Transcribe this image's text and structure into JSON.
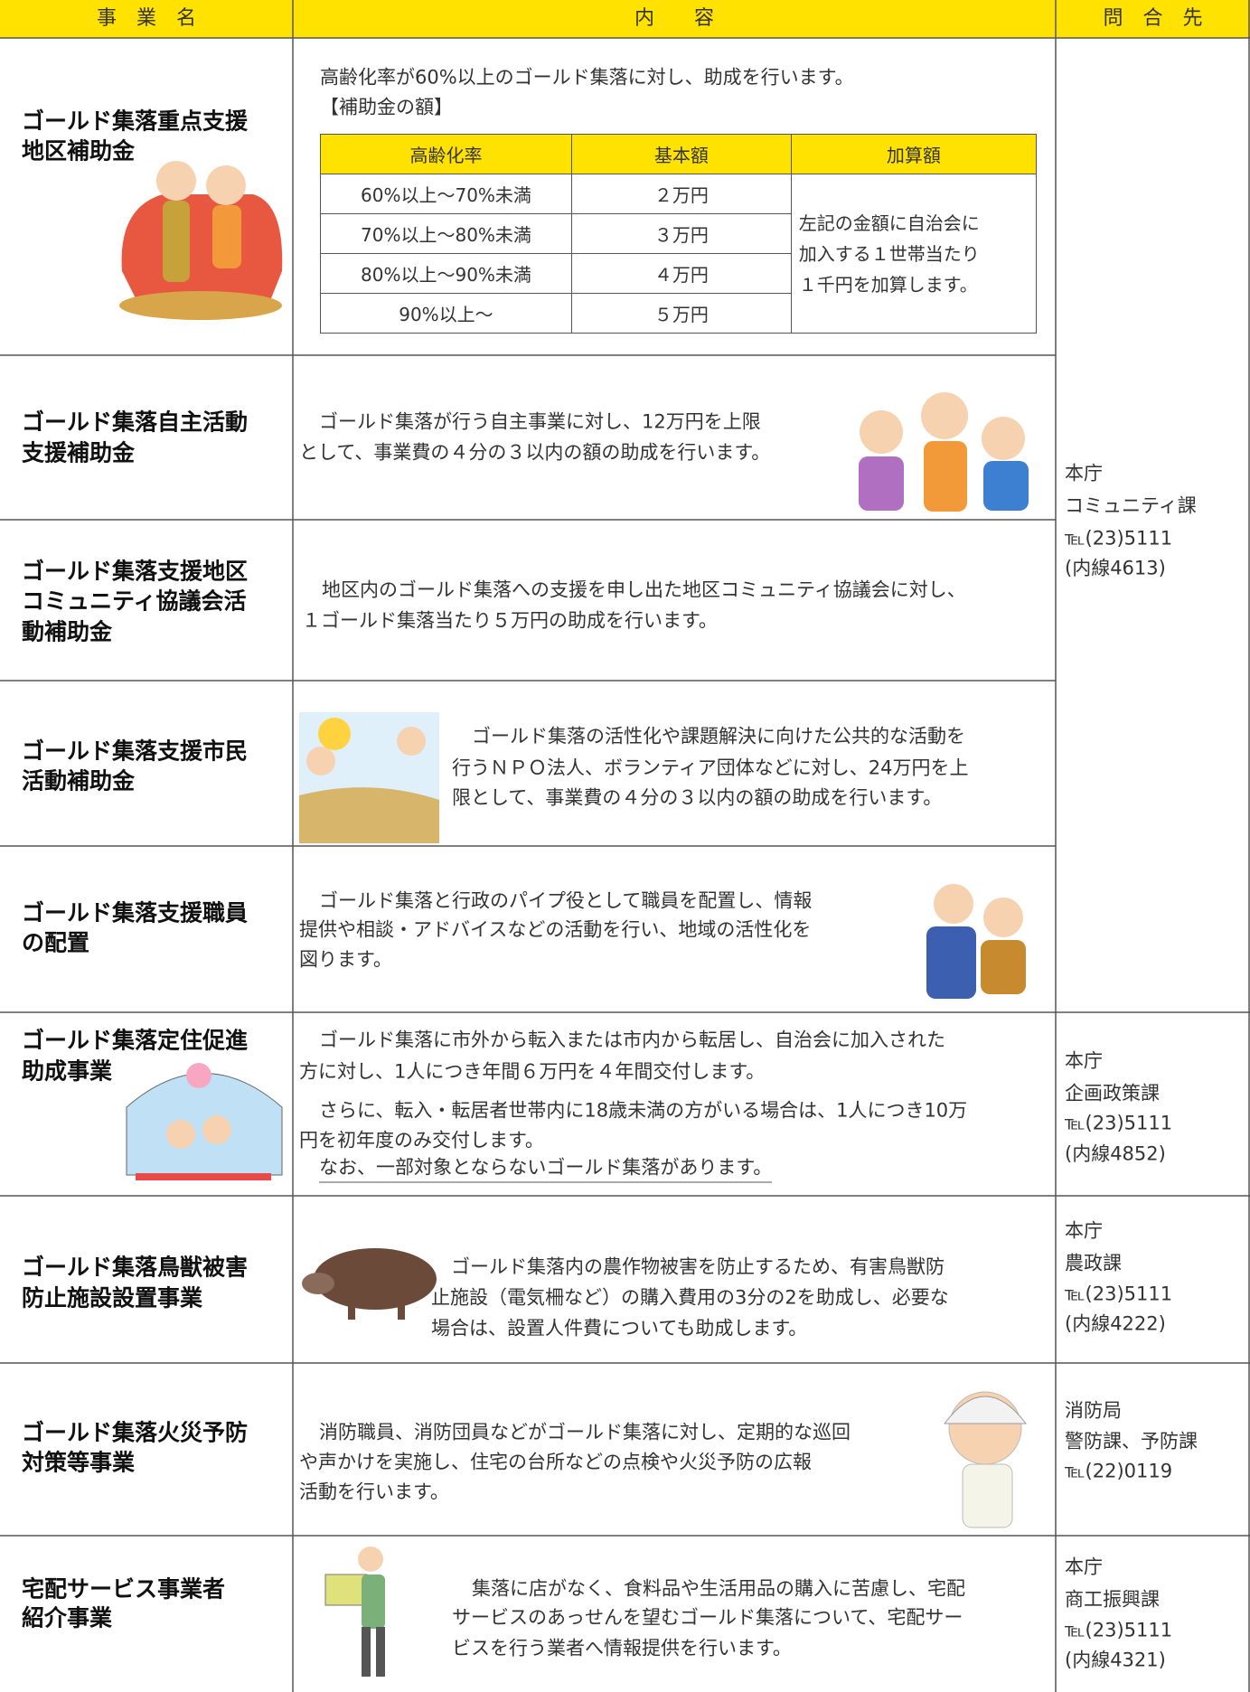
{
  "header": {
    "name": "事　業　名",
    "content": "内　　容",
    "contact": "問　合　先"
  },
  "rows": [
    {
      "name": [
        "ゴールド集落重点支援",
        "地区補助金"
      ],
      "content": [
        "高齢化率が60%以上のゴールド集落に対し、助成を行います。",
        "【補助金の額】"
      ],
      "table": {
        "header": [
          "高齢化率",
          "基本額",
          "加算額"
        ],
        "rows": [
          [
            "60%以上〜70%未満",
            "２万円"
          ],
          [
            "70%以上〜80%未満",
            "３万円"
          ],
          [
            "80%以上〜90%未満",
            "４万円"
          ],
          [
            "90%以上〜",
            "５万円"
          ]
        ],
        "addition": [
          "左記の金額に自治会に",
          "加入する１世帯当たり",
          "１千円を加算します。"
        ]
      }
    },
    {
      "name": [
        "ゴールド集落自主活動",
        "支援補助金"
      ],
      "content": [
        "ゴールド集落が行う自主事業に対し、12万円を上限",
        "として、事業費の４分の３以内の額の助成を行います。"
      ]
    },
    {
      "name": [
        "ゴールド集落支援地区",
        "コミュニティ協議会活",
        "動補助金"
      ],
      "content": [
        "地区内のゴールド集落への支援を申し出た地区コミュニティ協議会に対し、",
        "１ゴールド集落当たり５万円の助成を行います。"
      ]
    },
    {
      "name": [
        "ゴールド集落支援市民",
        "活動補助金"
      ],
      "content": [
        "ゴールド集落の活性化や課題解決に向けた公共的な活動を",
        "行うＮＰＯ法人、ボランティア団体などに対し、24万円を上",
        "限として、事業費の４分の３以内の額の助成を行います。"
      ]
    },
    {
      "name": [
        "ゴールド集落支援職員",
        "の配置"
      ],
      "content": [
        "ゴールド集落と行政のパイプ役として職員を配置し、情報",
        "提供や相談・アドバイスなどの活動を行い、地域の活性化を",
        "図ります。"
      ]
    },
    {
      "name": [
        "ゴールド集落定住促進",
        "助成事業"
      ],
      "content": [
        "ゴールド集落に市外から転入または市内から転居し、自治会に加入された",
        "方に対し、1人につき年間６万円を４年間交付します。",
        "さらに、転入・転居者世帯内に18歳未満の方がいる場合は、1人につき10万",
        "円を初年度のみ交付します。",
        "なお、一部対象とならないゴールド集落があります。"
      ]
    },
    {
      "name": [
        "ゴールド集落鳥獣被害",
        "防止施設設置事業"
      ],
      "content": [
        "ゴールド集落内の農作物被害を防止するため、有害鳥獣防",
        "止施設（電気柵など）の購入費用の3分の2を助成し、必要な",
        "場合は、設置人件費についても助成します。"
      ]
    },
    {
      "name": [
        "ゴールド集落火災予防",
        "対策等事業"
      ],
      "content": [
        "消防職員、消防団員などがゴールド集落に対し、定期的な巡回",
        "や声かけを実施し、住宅の台所などの点検や火災予防の広報",
        "活動を行います。"
      ]
    },
    {
      "name": [
        "宅配サービス事業者",
        "紹介事業"
      ],
      "content": [
        "集落に店がなく、食料品や生活用品の購入に苦慮し、宅配",
        "サービスのあっせんを望むゴールド集落について、宅配サー",
        "ビスを行う業者へ情報提供を行います。"
      ]
    }
  ],
  "contacts": [
    {
      "lines": [
        "本庁",
        "コミュニティ課",
        "℡(23)5111",
        "(内線4613)"
      ]
    },
    {
      "lines": [
        "本庁",
        "企画政策課",
        "℡(23)5111",
        "(内線4852)"
      ]
    },
    {
      "lines": [
        "本庁",
        "農政課",
        "℡(23)5111",
        "(内線4222)"
      ]
    },
    {
      "lines": [
        "消防局",
        "警防課、予防課",
        "℡(22)0119"
      ]
    },
    {
      "lines": [
        "本庁",
        "商工振興課",
        "℡(23)5111",
        "(内線4321)"
      ]
    }
  ]
}
